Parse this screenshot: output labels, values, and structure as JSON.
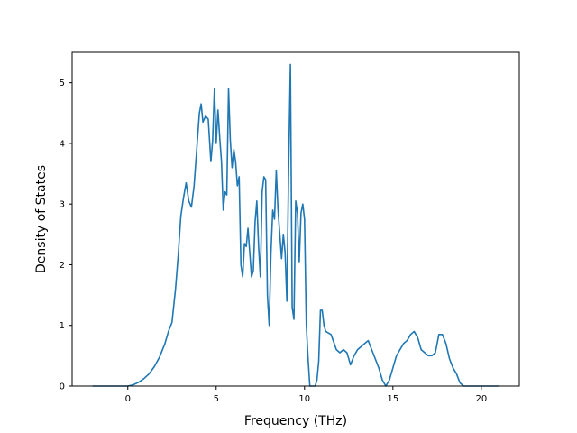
{
  "chart_data": {
    "type": "line",
    "title": "",
    "xlabel": "Frequency (THz)",
    "ylabel": "Density of States",
    "xlim": [
      -3.15,
      22.15
    ],
    "ylim": [
      0,
      5.5
    ],
    "xticks": [
      0,
      5,
      10,
      15,
      20
    ],
    "yticks": [
      0,
      1,
      2,
      3,
      4,
      5
    ],
    "grid": false,
    "legend": "none",
    "series": [
      {
        "color": "#1f77b4",
        "x": [
          -2.0,
          -1.0,
          0.0,
          0.3,
          0.6,
          0.9,
          1.2,
          1.5,
          1.8,
          2.1,
          2.3,
          2.5,
          2.7,
          2.85,
          3.0,
          3.15,
          3.3,
          3.45,
          3.6,
          3.75,
          3.9,
          4.05,
          4.15,
          4.25,
          4.4,
          4.55,
          4.7,
          4.8,
          4.9,
          5.0,
          5.1,
          5.2,
          5.3,
          5.4,
          5.5,
          5.6,
          5.7,
          5.8,
          5.9,
          6.0,
          6.1,
          6.2,
          6.3,
          6.4,
          6.5,
          6.6,
          6.7,
          6.8,
          6.9,
          7.0,
          7.1,
          7.2,
          7.3,
          7.4,
          7.5,
          7.6,
          7.7,
          7.8,
          7.9,
          8.0,
          8.1,
          8.2,
          8.3,
          8.4,
          8.5,
          8.6,
          8.7,
          8.8,
          8.9,
          9.0,
          9.1,
          9.2,
          9.3,
          9.4,
          9.5,
          9.6,
          9.7,
          9.8,
          9.9,
          10.0,
          10.1,
          10.2,
          10.3,
          10.4,
          10.5,
          10.6,
          10.7,
          10.8,
          10.9,
          11.0,
          11.1,
          11.2,
          11.5,
          11.8,
          12.0,
          12.2,
          12.4,
          12.6,
          12.8,
          13.0,
          13.2,
          13.4,
          13.6,
          13.8,
          14.0,
          14.2,
          14.4,
          14.6,
          14.8,
          15.0,
          15.2,
          15.4,
          15.6,
          15.8,
          16.0,
          16.2,
          16.4,
          16.6,
          16.8,
          17.0,
          17.2,
          17.4,
          17.6,
          17.8,
          18.0,
          18.2,
          18.4,
          18.6,
          18.8,
          19.0,
          19.2,
          19.5,
          20.0,
          21.0
        ],
        "y": [
          0,
          0,
          0,
          0.02,
          0.06,
          0.12,
          0.2,
          0.32,
          0.48,
          0.7,
          0.9,
          1.05,
          1.6,
          2.15,
          2.8,
          3.1,
          3.35,
          3.05,
          2.95,
          3.3,
          3.9,
          4.5,
          4.65,
          4.35,
          4.45,
          4.4,
          3.7,
          4.05,
          4.9,
          4.0,
          4.55,
          4.1,
          3.7,
          2.9,
          3.2,
          3.15,
          4.9,
          4.05,
          3.6,
          3.9,
          3.7,
          3.3,
          3.45,
          2.0,
          1.8,
          2.35,
          2.3,
          2.6,
          2.2,
          1.8,
          1.9,
          2.7,
          3.05,
          2.3,
          1.8,
          3.2,
          3.45,
          3.4,
          1.5,
          1.0,
          2.2,
          2.9,
          2.75,
          3.55,
          2.9,
          2.5,
          2.1,
          2.5,
          2.2,
          1.4,
          3.6,
          5.3,
          1.3,
          1.1,
          3.05,
          2.85,
          2.05,
          2.85,
          3.0,
          2.75,
          1.0,
          0.45,
          0,
          0,
          0,
          0,
          0.1,
          0.4,
          1.25,
          1.25,
          1.0,
          0.9,
          0.85,
          0.6,
          0.55,
          0.6,
          0.55,
          0.35,
          0.5,
          0.6,
          0.65,
          0.7,
          0.75,
          0.6,
          0.45,
          0.3,
          0.1,
          0.0,
          0.1,
          0.3,
          0.5,
          0.6,
          0.7,
          0.75,
          0.85,
          0.9,
          0.8,
          0.6,
          0.55,
          0.5,
          0.5,
          0.55,
          0.85,
          0.85,
          0.7,
          0.45,
          0.3,
          0.2,
          0.05,
          0,
          0,
          0,
          0,
          0
        ]
      }
    ]
  }
}
